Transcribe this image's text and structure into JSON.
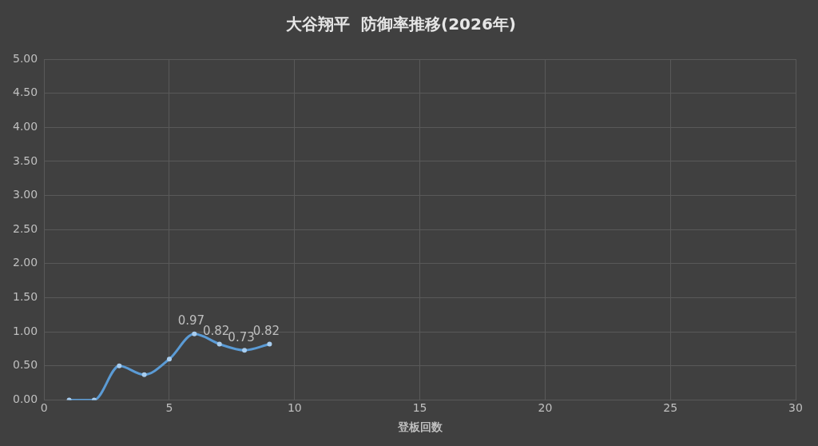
{
  "chart_data": {
    "type": "line",
    "title": "大谷翔平  防御率推移(2026年)",
    "xlabel": "登板回数",
    "x": [
      1,
      2,
      3,
      4,
      5,
      6,
      7,
      8,
      9
    ],
    "series": [
      {
        "color": "#5b9bd5",
        "values": [
          0,
          0,
          0.5,
          0.37,
          0.6,
          0.97,
          0.82,
          0.73,
          0.82
        ],
        "value_labels": [
          null,
          null,
          null,
          null,
          null,
          "0.97",
          "0.82",
          "0.73",
          "0.82"
        ]
      }
    ],
    "xlim": [
      0,
      30
    ],
    "xticks": [
      0,
      5,
      10,
      15,
      20,
      25,
      30
    ],
    "ylim": [
      0,
      5
    ],
    "yticks": [
      {
        "value": 0,
        "label": "0.00"
      },
      {
        "value": 0.5,
        "label": "0.50"
      },
      {
        "value": 1,
        "label": "1.00"
      },
      {
        "value": 1.5,
        "label": "1.50"
      },
      {
        "value": 2,
        "label": "2.00"
      },
      {
        "value": 2.5,
        "label": "2.50"
      },
      {
        "value": 3,
        "label": "3.00"
      },
      {
        "value": 3.5,
        "label": "3.50"
      },
      {
        "value": 4,
        "label": "4.00"
      },
      {
        "value": 4.5,
        "label": "4.50"
      },
      {
        "value": 5,
        "label": "5.00"
      }
    ],
    "grid": true,
    "marker": "circle",
    "legend": false
  }
}
